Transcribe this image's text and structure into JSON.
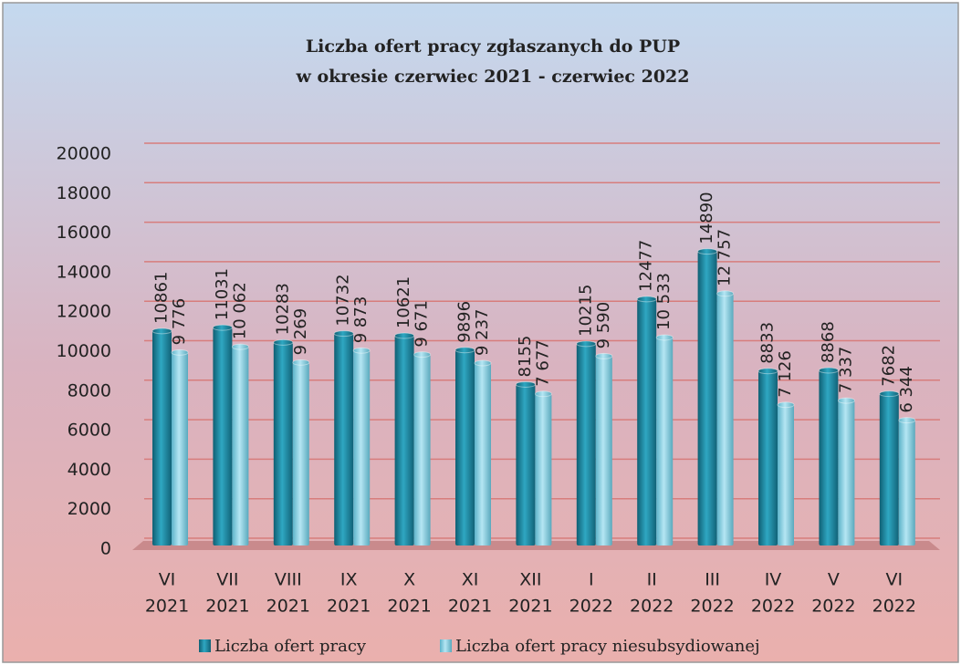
{
  "chart_data": {
    "type": "bar",
    "title": [
      "Liczba ofert pracy zgłaszanych do PUP",
      "w okresie czerwiec 2021 - czerwiec 2022"
    ],
    "categories": [
      [
        "VI",
        "2021"
      ],
      [
        "VII",
        "2021"
      ],
      [
        "VIII",
        "2021"
      ],
      [
        "IX",
        "2021"
      ],
      [
        "X",
        "2021"
      ],
      [
        "XI",
        "2021"
      ],
      [
        "XII",
        "2021"
      ],
      [
        "I",
        "2022"
      ],
      [
        "II",
        "2022"
      ],
      [
        "III",
        "2022"
      ],
      [
        "IV",
        "2022"
      ],
      [
        "V",
        "2022"
      ],
      [
        "VI",
        "2022"
      ]
    ],
    "series": [
      {
        "name": "Liczba ofert pracy",
        "color": "#1f8fa8",
        "values": [
          10861,
          11031,
          10283,
          10732,
          10621,
          9896,
          8155,
          10215,
          12477,
          14890,
          8833,
          8868,
          7682
        ]
      },
      {
        "name": "Liczba ofert pracy niesubsydiowanej",
        "color": "#8fd3e6",
        "values": [
          9776,
          10062,
          9269,
          9873,
          9671,
          9237,
          7677,
          9590,
          10533,
          12757,
          7126,
          7337,
          6344
        ],
        "value_labels": [
          "9 776",
          "10 062",
          "9 269",
          "9 873",
          "9 671",
          "9 237",
          "7 677",
          "9 590",
          "10 533",
          "12 757",
          "7 126",
          "7 337",
          "6 344"
        ]
      }
    ],
    "ylim": [
      0,
      20000
    ],
    "yticks": [
      0,
      2000,
      4000,
      6000,
      8000,
      10000,
      12000,
      14000,
      16000,
      18000,
      20000
    ],
    "grid": true,
    "legend": "bottom"
  }
}
